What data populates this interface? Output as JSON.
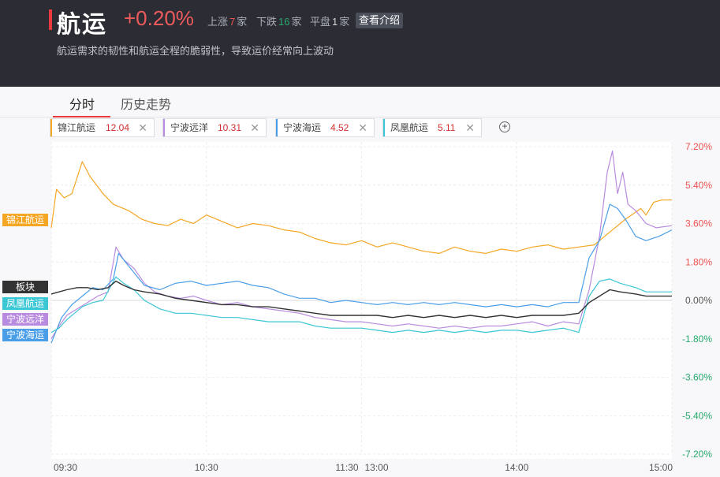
{
  "header": {
    "title": "航运",
    "change": "+0.20%",
    "up_label": "上涨",
    "up_count": "7",
    "up_unit": "家",
    "down_label": "下跌",
    "down_count": "16",
    "down_unit": "家",
    "flat_label": "平盘",
    "flat_count": "1",
    "flat_unit": "家",
    "intro_button": "查看介绍",
    "description": "航运需求的韧性和航运全程的脆弱性，导致运价经常向上波动"
  },
  "tabs": [
    "分时",
    "历史走势"
  ],
  "chips": [
    {
      "name": "锦江航运",
      "price": "12.04",
      "color": "#f5a623"
    },
    {
      "name": "宁波远洋",
      "price": "10.31",
      "color": "#b98be0"
    },
    {
      "name": "宁波海运",
      "price": "4.52",
      "color": "#4a9ee8"
    },
    {
      "name": "凤凰航运",
      "price": "5.11",
      "color": "#3bc6d4"
    }
  ],
  "add_icon": "plus-circle-icon",
  "chart_data": {
    "type": "line",
    "x_ticks": [
      "09:30",
      "10:30",
      "11:30",
      "13:00",
      "14:00",
      "15:00"
    ],
    "y_ticks": [
      "7.20%",
      "5.40%",
      "3.60%",
      "1.80%",
      "0.00%",
      "-1.80%",
      "-3.60%",
      "-5.40%",
      "-7.20%"
    ],
    "y_range": [
      -7.2,
      7.2
    ],
    "up_color": "#ef5350",
    "down_color": "#26a96c",
    "grid": true,
    "series": [
      {
        "name": "锦江航运",
        "color": "#f5a623",
        "x": [
          0,
          2,
          5,
          8,
          12,
          15,
          20,
          24,
          30,
          35,
          40,
          45,
          50,
          55,
          60,
          66,
          72,
          78,
          84,
          90,
          96,
          102,
          108,
          114,
          120,
          126,
          132,
          138,
          144,
          150,
          156,
          162,
          168,
          174,
          180,
          186,
          192,
          198,
          204,
          210,
          216,
          222,
          228,
          230,
          233,
          236,
          240
        ],
        "y": [
          3.4,
          5.2,
          4.8,
          5.0,
          6.5,
          5.8,
          5.0,
          4.5,
          4.2,
          3.8,
          3.6,
          3.5,
          3.8,
          3.6,
          4.0,
          3.7,
          3.4,
          3.6,
          3.5,
          3.3,
          3.2,
          2.9,
          2.7,
          2.6,
          2.8,
          2.5,
          2.7,
          2.5,
          2.3,
          2.2,
          2.5,
          2.3,
          2.2,
          2.4,
          2.3,
          2.5,
          2.6,
          2.4,
          2.5,
          2.6,
          3.2,
          3.8,
          4.3,
          4.0,
          4.6,
          4.7,
          4.7
        ]
      },
      {
        "name": "宁波远洋",
        "color": "#b98be0",
        "x": [
          0,
          3,
          6,
          10,
          14,
          18,
          22,
          25,
          28,
          32,
          36,
          40,
          45,
          50,
          55,
          60,
          66,
          72,
          78,
          84,
          90,
          96,
          102,
          108,
          114,
          120,
          126,
          132,
          138,
          144,
          150,
          156,
          162,
          168,
          174,
          180,
          186,
          192,
          198,
          204,
          208,
          212,
          215,
          217,
          219,
          221,
          223,
          226,
          230,
          234,
          240
        ],
        "y": [
          -1.8,
          -1.2,
          -0.7,
          -0.4,
          -0.1,
          0.2,
          0.4,
          2.5,
          1.9,
          1.5,
          0.8,
          0.4,
          0.2,
          0.1,
          0.2,
          0.0,
          -0.2,
          -0.1,
          -0.3,
          -0.4,
          -0.5,
          -0.6,
          -0.8,
          -0.9,
          -1.0,
          -1.0,
          -1.1,
          -1.2,
          -1.1,
          -1.2,
          -1.3,
          -1.2,
          -1.3,
          -1.2,
          -1.2,
          -1.1,
          -1.0,
          -1.2,
          -1.0,
          -1.1,
          0.5,
          3.0,
          6.0,
          7.0,
          5.0,
          6.0,
          4.5,
          4.2,
          3.6,
          3.4,
          3.5
        ]
      },
      {
        "name": "宁波海运",
        "color": "#4a9ee8",
        "x": [
          0,
          4,
          8,
          12,
          16,
          20,
          24,
          26,
          30,
          36,
          42,
          48,
          54,
          60,
          66,
          72,
          78,
          84,
          90,
          96,
          102,
          108,
          114,
          120,
          126,
          132,
          138,
          144,
          150,
          156,
          162,
          168,
          174,
          180,
          186,
          192,
          198,
          204,
          208,
          212,
          216,
          219,
          222,
          226,
          230,
          235,
          240
        ],
        "y": [
          -2.0,
          -0.8,
          -0.2,
          0.2,
          0.6,
          0.5,
          1.0,
          2.2,
          1.6,
          0.7,
          0.5,
          0.8,
          0.9,
          0.7,
          0.8,
          0.9,
          0.7,
          0.6,
          0.3,
          0.1,
          0.1,
          -0.1,
          0.0,
          -0.1,
          -0.2,
          -0.1,
          -0.2,
          -0.1,
          -0.2,
          -0.1,
          -0.2,
          -0.3,
          -0.2,
          -0.3,
          -0.2,
          -0.3,
          -0.1,
          -0.1,
          2.0,
          2.8,
          4.5,
          4.3,
          3.8,
          3.0,
          2.8,
          3.0,
          3.3
        ]
      },
      {
        "name": "凤凰航运",
        "color": "#3bc6d4",
        "x": [
          0,
          3,
          6,
          9,
          12,
          16,
          20,
          25,
          28,
          32,
          36,
          42,
          48,
          54,
          60,
          66,
          72,
          78,
          84,
          90,
          96,
          102,
          108,
          114,
          120,
          126,
          132,
          138,
          144,
          150,
          156,
          162,
          168,
          174,
          180,
          186,
          192,
          198,
          204,
          208,
          212,
          216,
          220,
          226,
          230,
          235,
          240
        ],
        "y": [
          -1.5,
          -1.3,
          -0.9,
          -0.6,
          -0.3,
          -0.1,
          0.0,
          1.1,
          0.8,
          0.5,
          0.0,
          -0.4,
          -0.6,
          -0.6,
          -0.7,
          -0.8,
          -0.8,
          -0.9,
          -1.0,
          -1.0,
          -1.0,
          -1.2,
          -1.3,
          -1.3,
          -1.3,
          -1.4,
          -1.5,
          -1.4,
          -1.5,
          -1.4,
          -1.5,
          -1.4,
          -1.5,
          -1.4,
          -1.4,
          -1.5,
          -1.4,
          -1.3,
          -1.5,
          0.2,
          0.9,
          1.0,
          0.8,
          0.6,
          0.4,
          0.4,
          0.4
        ]
      },
      {
        "name": "板块",
        "color": "#333333",
        "x": [
          0,
          3,
          6,
          10,
          14,
          18,
          22,
          25,
          28,
          32,
          36,
          42,
          48,
          54,
          60,
          66,
          72,
          78,
          84,
          90,
          96,
          102,
          108,
          114,
          120,
          126,
          132,
          138,
          144,
          150,
          156,
          162,
          168,
          174,
          180,
          186,
          192,
          198,
          204,
          208,
          212,
          216,
          220,
          226,
          230,
          235,
          240
        ],
        "y": [
          0.3,
          0.4,
          0.5,
          0.6,
          0.6,
          0.5,
          0.6,
          0.9,
          0.7,
          0.5,
          0.4,
          0.3,
          0.1,
          0.0,
          -0.1,
          -0.2,
          -0.2,
          -0.3,
          -0.3,
          -0.4,
          -0.5,
          -0.6,
          -0.7,
          -0.7,
          -0.7,
          -0.7,
          -0.8,
          -0.7,
          -0.8,
          -0.7,
          -0.8,
          -0.7,
          -0.8,
          -0.7,
          -0.8,
          -0.7,
          -0.7,
          -0.7,
          -0.6,
          -0.1,
          0.2,
          0.5,
          0.4,
          0.3,
          0.2,
          0.2,
          0.2
        ]
      }
    ]
  },
  "left_labels": [
    {
      "name": "锦江航运",
      "color": "#f5a623"
    },
    {
      "name": "板块",
      "color": "#333333"
    },
    {
      "name": "凤凰航运",
      "color": "#3bc6d4"
    },
    {
      "name": "宁波远洋",
      "color": "#b98be0"
    },
    {
      "name": "宁波海运",
      "color": "#4a9ee8"
    }
  ]
}
